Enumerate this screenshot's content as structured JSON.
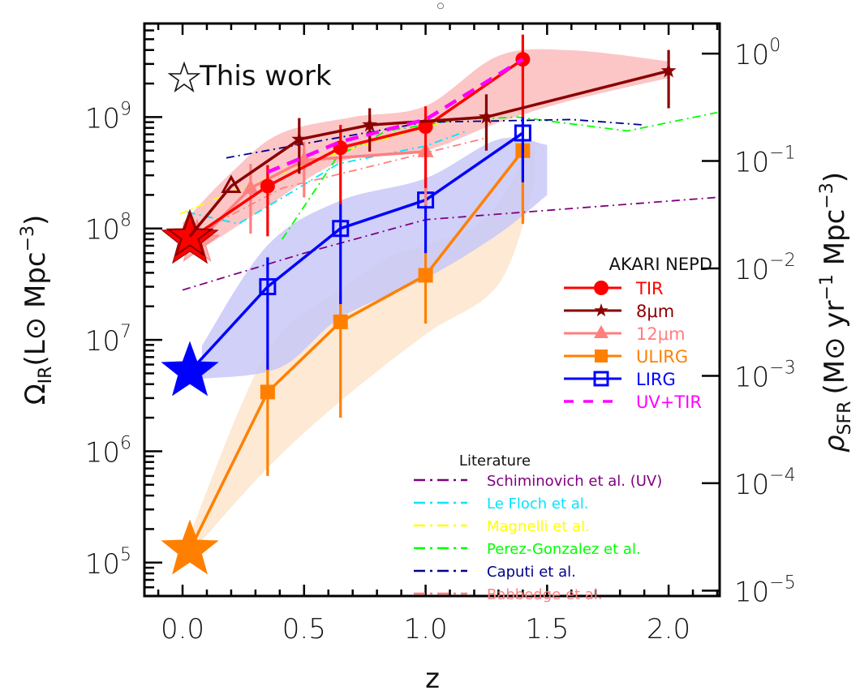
{
  "chart_data": {
    "type": "line",
    "title": "",
    "xlabel": "z",
    "ylabel": "Ω_IR (L⊙ Mpc^-3)",
    "ylabel_parts": {
      "symbol": "Ω",
      "sub": "IR",
      "unit": "(L⊙ Mpc",
      "exp": "−3",
      "close": ")"
    },
    "y2label": "ρ_SFR (M⊙ yr^-1 Mpc^-3)",
    "y2label_parts": {
      "symbol": "ρ",
      "sub": "SFR",
      "unit": "(M⊙ yr",
      "exp1": "−1",
      "mid": " Mpc",
      "exp2": "−3",
      "close": ")"
    },
    "xlim": [
      -0.157,
      2.21
    ],
    "ylim_log10": [
      4.7,
      9.84
    ],
    "y2lim_log10": [
      -5.05,
      0.28
    ],
    "yscale": "log",
    "grid": false,
    "top_glyph": "○",
    "x_ticks": [
      {
        "value": 0.0,
        "label": "0.0"
      },
      {
        "value": 0.5,
        "label": "0.5"
      },
      {
        "value": 1.0,
        "label": "1.0"
      },
      {
        "value": 1.5,
        "label": "1.5"
      },
      {
        "value": 2.0,
        "label": "2.0"
      }
    ],
    "y_ticks": [
      {
        "exp": 5,
        "base": "10",
        "sup": "5"
      },
      {
        "exp": 6,
        "base": "10",
        "sup": "6"
      },
      {
        "exp": 7,
        "base": "10",
        "sup": "7"
      },
      {
        "exp": 8,
        "base": "10",
        "sup": "8"
      },
      {
        "exp": 9,
        "base": "10",
        "sup": "9"
      }
    ],
    "y2_ticks": [
      {
        "exp": -5,
        "base": "10",
        "sup": "−5"
      },
      {
        "exp": -4,
        "base": "10",
        "sup": "−4"
      },
      {
        "exp": -3,
        "base": "10",
        "sup": "−3"
      },
      {
        "exp": -2,
        "base": "10",
        "sup": "−2"
      },
      {
        "exp": -1,
        "base": "10",
        "sup": "−1"
      },
      {
        "exp": 0,
        "base": "10",
        "sup": "0"
      }
    ],
    "annotation": "This work",
    "legend_title": "AKARI NEPD",
    "legend_placement": "right-middle",
    "literature_title": "Literature",
    "literature_placement": "bottom-right",
    "bands": [
      {
        "name": "ULIRG band",
        "color": "#fde5cc",
        "upper": [
          [
            0.02,
            5.2
          ],
          [
            0.35,
            6.9
          ],
          [
            0.65,
            7.45
          ],
          [
            0.85,
            7.75
          ],
          [
            1.0,
            7.85
          ],
          [
            1.25,
            8.1
          ],
          [
            1.45,
            8.8
          ]
        ],
        "lower": [
          [
            1.45,
            8.4
          ],
          [
            1.3,
            7.5
          ],
          [
            1.0,
            7.05
          ],
          [
            0.65,
            6.45
          ],
          [
            0.35,
            5.85
          ],
          [
            0.02,
            5.05
          ]
        ]
      },
      {
        "name": "LIRG band",
        "color": "#c8c8f8",
        "upper": [
          [
            0.08,
            6.95
          ],
          [
            0.35,
            7.85
          ],
          [
            0.65,
            8.25
          ],
          [
            1.0,
            8.45
          ],
          [
            1.3,
            8.8
          ],
          [
            1.5,
            8.75
          ]
        ],
        "lower": [
          [
            1.5,
            8.3
          ],
          [
            1.3,
            7.95
          ],
          [
            1.0,
            7.55
          ],
          [
            0.65,
            7.2
          ],
          [
            0.4,
            6.75
          ],
          [
            0.08,
            6.65
          ]
        ]
      },
      {
        "name": "TIR band",
        "color": "#fbbcbc",
        "upper": [
          [
            0.0,
            8.05
          ],
          [
            0.2,
            8.5
          ],
          [
            0.4,
            8.85
          ],
          [
            0.7,
            9.0
          ],
          [
            1.0,
            9.1
          ],
          [
            1.3,
            9.55
          ],
          [
            1.6,
            9.6
          ],
          [
            2.0,
            9.5
          ]
        ],
        "lower": [
          [
            2.0,
            9.35
          ],
          [
            1.6,
            9.15
          ],
          [
            1.3,
            8.95
          ],
          [
            1.0,
            8.7
          ],
          [
            0.65,
            8.6
          ],
          [
            0.35,
            8.2
          ],
          [
            0.1,
            7.85
          ],
          [
            0.0,
            7.8
          ]
        ]
      }
    ],
    "series": [
      {
        "name": "TIR",
        "color": "#ff0000",
        "marker": "circle",
        "linestyle": "solid",
        "points": [
          {
            "x": 0.03,
            "y": 80000000.0,
            "yerr_lo": 80000000.0,
            "yerr_hi": 80000000.0,
            "star": true
          },
          {
            "x": 0.35,
            "y": 240000000.0,
            "yerr_lo": 85000000.0,
            "yerr_hi": 370000000.0
          },
          {
            "x": 0.65,
            "y": 530000000.0,
            "yerr_lo": 165000000.0,
            "yerr_hi": 850000000.0
          },
          {
            "x": 1.0,
            "y": 820000000.0,
            "yerr_lo": 230000000.0,
            "yerr_hi": 1250000000.0
          },
          {
            "x": 1.4,
            "y": 3300000000.0,
            "yerr_lo": 1000000000.0,
            "yerr_hi": 5500000000.0
          }
        ]
      },
      {
        "name": "8μm",
        "color": "#8b0000",
        "marker": "star6",
        "linestyle": "solid",
        "points": [
          {
            "x": 0.03,
            "y": 85000000.0,
            "star": true
          },
          {
            "x": 0.2,
            "y": 240000000.0,
            "open_triangle": true
          },
          {
            "x": 0.48,
            "y": 630000000.0,
            "yerr_lo": 310000000.0,
            "yerr_hi": 980000000.0
          },
          {
            "x": 0.77,
            "y": 850000000.0,
            "yerr_lo": 490000000.0,
            "yerr_hi": 1200000000.0
          },
          {
            "x": 1.25,
            "y": 1000000000.0,
            "yerr_lo": 500000000.0,
            "yerr_hi": 1600000000.0
          },
          {
            "x": 2.0,
            "y": 2600000000.0,
            "yerr_lo": 1200000000.0,
            "yerr_hi": 4000000000.0
          }
        ]
      },
      {
        "name": "12μm",
        "color": "#ff7f7f",
        "marker": "triangle",
        "linestyle": "solid",
        "points": [
          {
            "x": 0.06,
            "y": 75000000.0,
            "star": true
          },
          {
            "x": 0.28,
            "y": 230000000.0,
            "yerr_lo": 90000000.0,
            "yerr_hi": 380000000.0
          },
          {
            "x": 0.5,
            "y": 410000000.0,
            "yerr_lo": 190000000.0,
            "yerr_hi": 600000000.0
          },
          {
            "x": 1.0,
            "y": 490000000.0,
            "yerr_lo": 160000000.0,
            "yerr_hi": 500000000.0
          }
        ]
      },
      {
        "name": "ULIRG",
        "color": "#ff8000",
        "marker": "square",
        "linestyle": "solid",
        "points": [
          {
            "x": 0.03,
            "y": 130000.0,
            "star": true
          },
          {
            "x": 0.35,
            "y": 3400000.0,
            "yerr_lo": 600000.0,
            "yerr_hi": 6000000.0
          },
          {
            "x": 0.65,
            "y": 14500000.0,
            "yerr_lo": 2000000.0,
            "yerr_hi": 26000000.0
          },
          {
            "x": 1.0,
            "y": 38000000.0,
            "yerr_lo": 14000000.0,
            "yerr_hi": 60000000.0
          },
          {
            "x": 1.4,
            "y": 500000000.0,
            "yerr_lo": 110000000.0,
            "yerr_hi": 630000000.0
          }
        ]
      },
      {
        "name": "LIRG",
        "color": "#0000ff",
        "marker": "open-square",
        "linestyle": "solid",
        "points": [
          {
            "x": 0.03,
            "y": 5200000.0,
            "star": true
          },
          {
            "x": 0.35,
            "y": 30000000.0,
            "yerr_lo": 5400000.0,
            "yerr_hi": 55000000.0
          },
          {
            "x": 0.65,
            "y": 100000000.0,
            "yerr_lo": 21000000.0,
            "yerr_hi": 175000000.0
          },
          {
            "x": 1.0,
            "y": 180000000.0,
            "yerr_lo": 60000000.0,
            "yerr_hi": 290000000.0
          },
          {
            "x": 1.4,
            "y": 720000000.0,
            "yerr_lo": 260000000.0,
            "yerr_hi": 1000000000.0
          }
        ]
      },
      {
        "name": "UV+TIR",
        "color": "#ff00ff",
        "marker": "none",
        "linestyle": "dashed",
        "points": [
          {
            "x": 0.35,
            "y": 320000000.0
          },
          {
            "x": 0.65,
            "y": 600000000.0
          },
          {
            "x": 1.0,
            "y": 950000000.0
          },
          {
            "x": 1.4,
            "y": 3300000000.0
          }
        ]
      }
    ],
    "literature": [
      {
        "name": "Schiminovich et al. (UV)",
        "color": "#800080",
        "points": [
          {
            "x": 0.0,
            "y": 28000000.0
          },
          {
            "x": 0.5,
            "y": 60000000.0
          },
          {
            "x": 1.0,
            "y": 120000000.0
          },
          {
            "x": 2.2,
            "y": 190000000.0
          }
        ]
      },
      {
        "name": "Le Floch et al.",
        "color": "#00e5ff",
        "points": [
          {
            "x": 0.02,
            "y": 140000000.0
          },
          {
            "x": 0.23,
            "y": 110000000.0
          },
          {
            "x": 0.43,
            "y": 200000000.0
          },
          {
            "x": 0.64,
            "y": 380000000.0
          },
          {
            "x": 1.0,
            "y": 550000000.0
          },
          {
            "x": 1.17,
            "y": 750000000.0
          }
        ]
      },
      {
        "name": "Magnelli et al.",
        "color": "#ffff00",
        "points": [
          {
            "x": -0.01,
            "y": 135000000.0
          },
          {
            "x": 0.24,
            "y": 230000000.0
          },
          {
            "x": 0.64,
            "y": 480000000.0
          },
          {
            "x": 1.07,
            "y": 900000000.0
          }
        ]
      },
      {
        "name": "Perez-Gonzalez et al.",
        "color": "#00ff00",
        "points": [
          {
            "x": 0.41,
            "y": 80000000.0
          },
          {
            "x": 0.64,
            "y": 450000000.0
          },
          {
            "x": 0.84,
            "y": 750000000.0
          },
          {
            "x": 1.14,
            "y": 950000000.0
          },
          {
            "x": 1.38,
            "y": 1000000000.0
          },
          {
            "x": 1.83,
            "y": 750000000.0
          },
          {
            "x": 2.2,
            "y": 1100000000.0
          }
        ]
      },
      {
        "name": "Caputi et al.",
        "color": "#00008b",
        "points": [
          {
            "x": 0.18,
            "y": 430000000.0
          },
          {
            "x": 0.6,
            "y": 630000000.0
          },
          {
            "x": 1.0,
            "y": 900000000.0
          },
          {
            "x": 1.6,
            "y": 950000000.0
          },
          {
            "x": 1.9,
            "y": 850000000.0
          }
        ]
      },
      {
        "name": "Babbedge et al.",
        "color": "#ff8080",
        "points": [
          {
            "x": 0.01,
            "y": 80000000.0
          },
          {
            "x": 0.41,
            "y": 230000000.0
          },
          {
            "x": 1.25,
            "y": 650000000.0
          }
        ]
      }
    ]
  }
}
